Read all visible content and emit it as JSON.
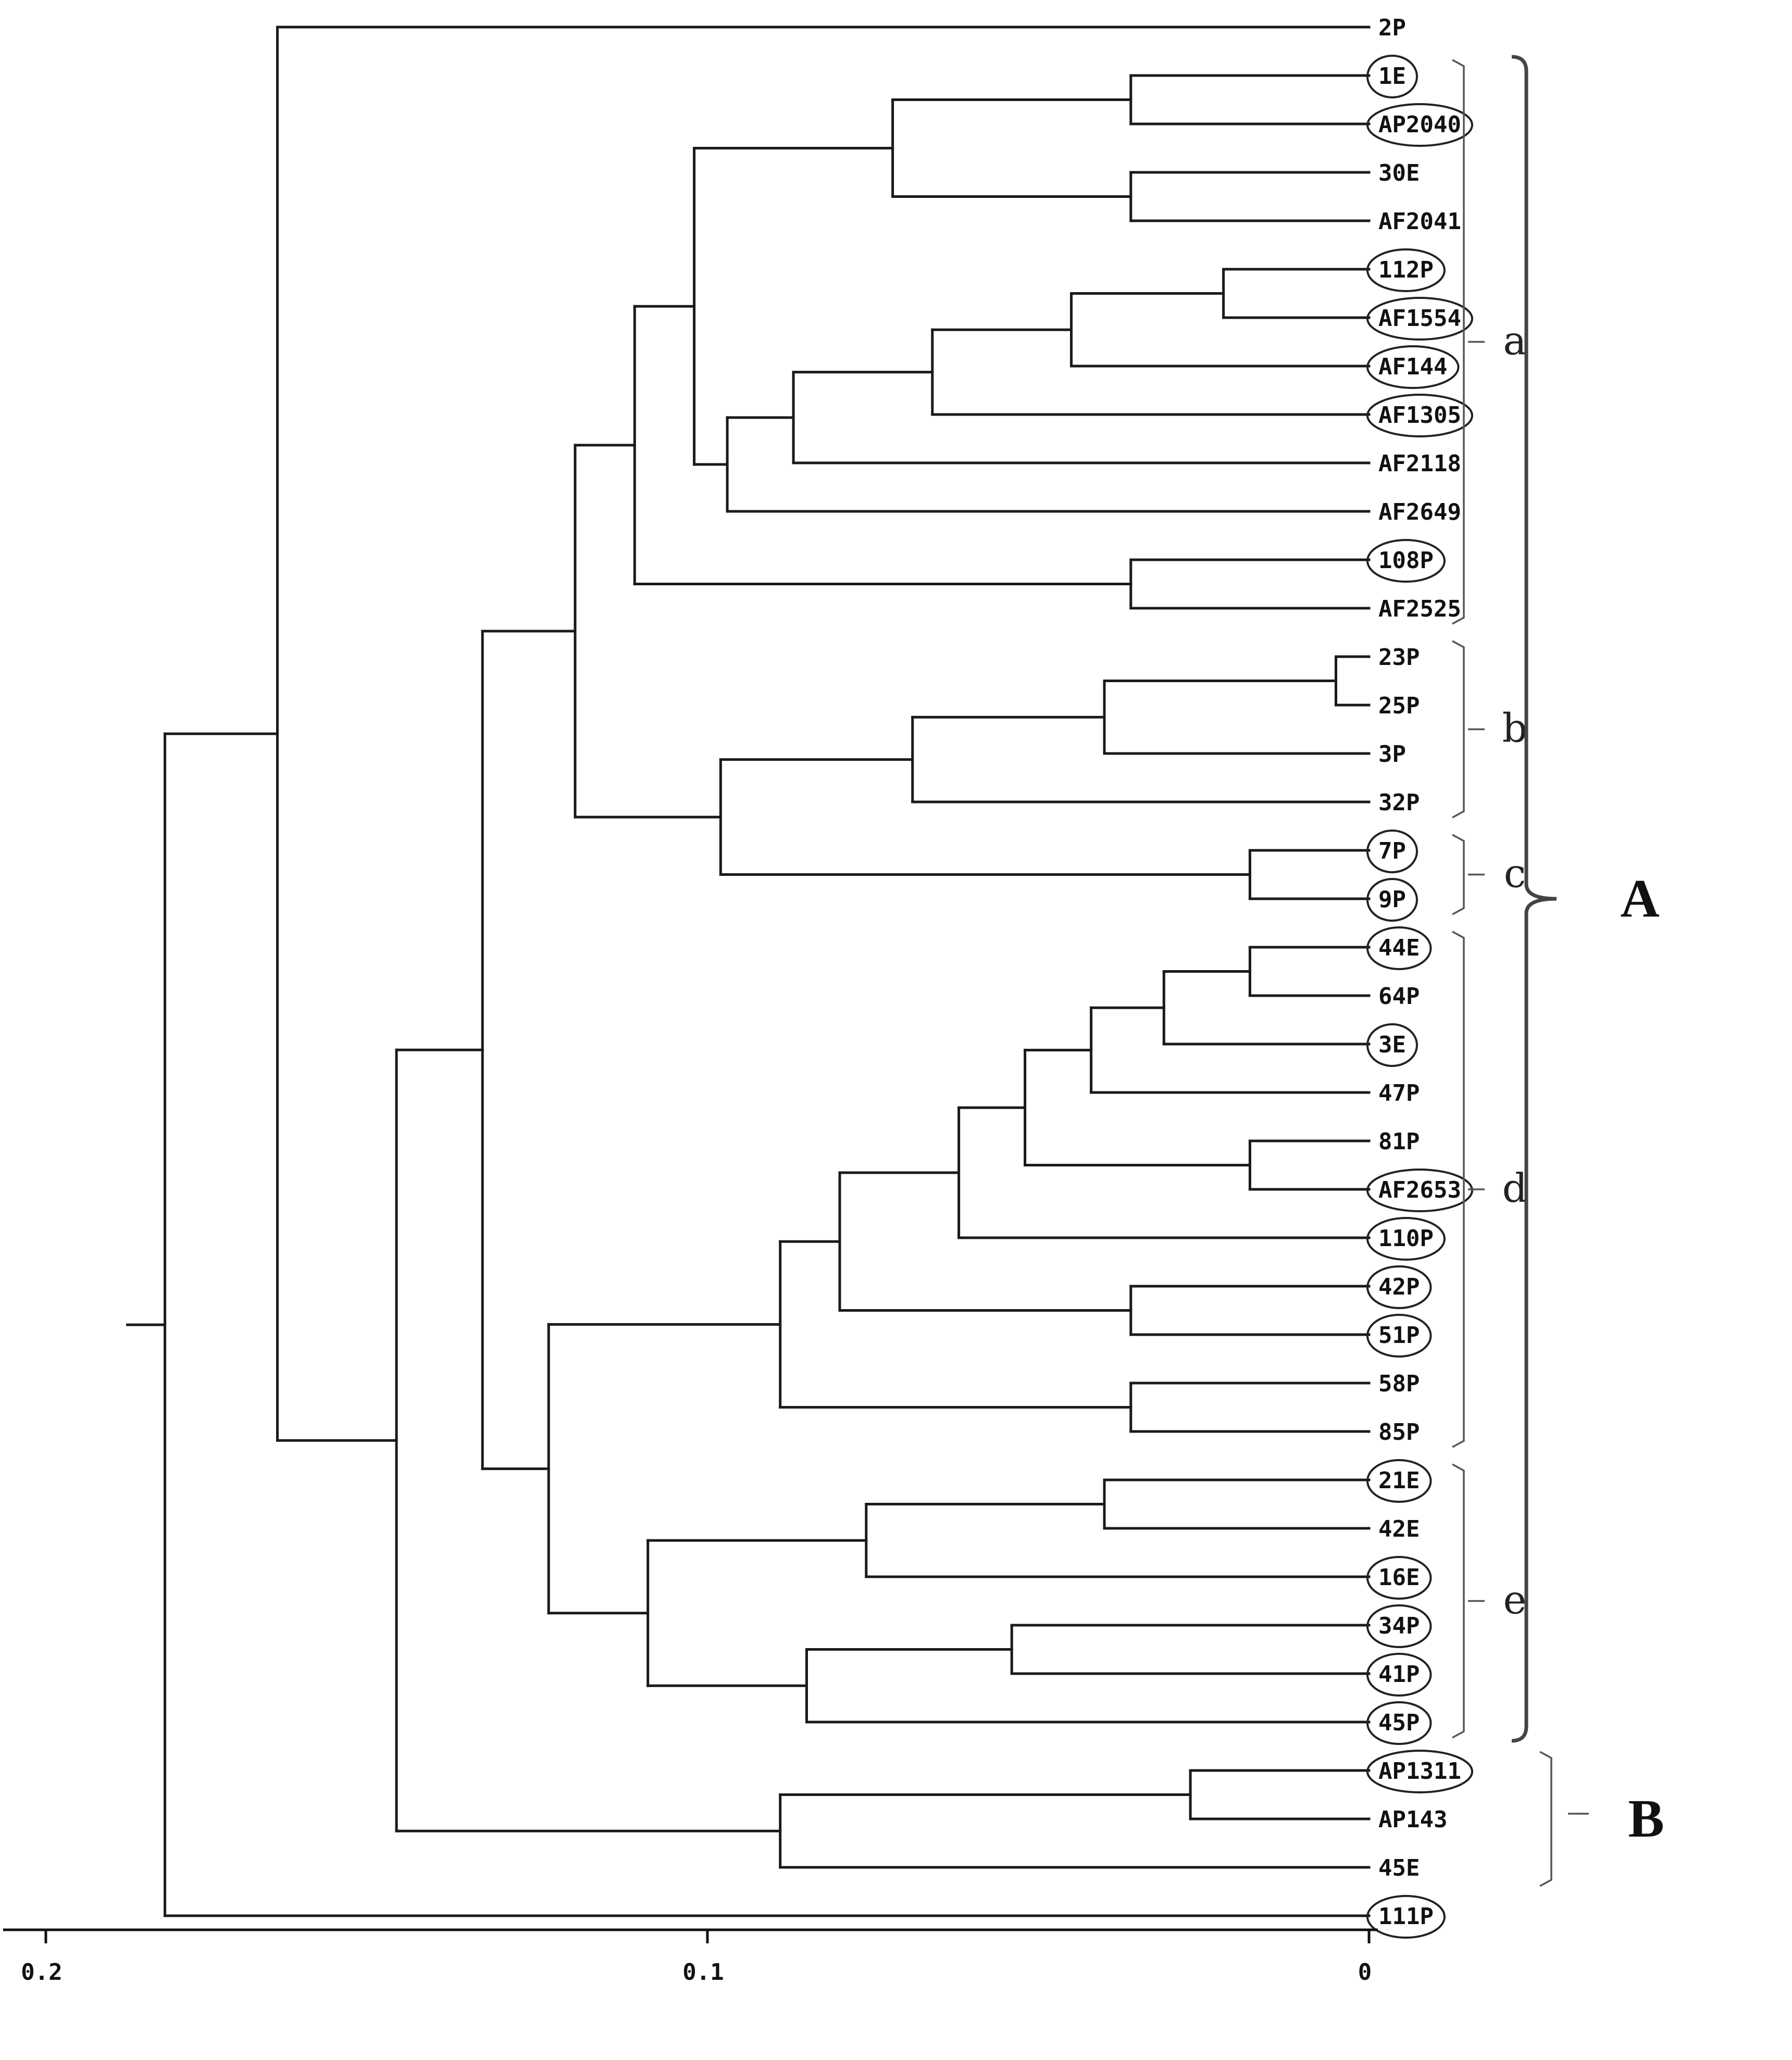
{
  "figure": {
    "type": "dendrogram",
    "axis": {
      "ticks": [
        {
          "value": 0.2,
          "label": "0.2"
        },
        {
          "value": 0.1,
          "label": "0.1"
        },
        {
          "value": 0,
          "label": "0"
        }
      ]
    },
    "leaves": [
      {
        "label": "2P",
        "circled": false
      },
      {
        "label": "1E",
        "circled": true
      },
      {
        "label": "AP2040",
        "circled": true
      },
      {
        "label": "30E",
        "circled": false
      },
      {
        "label": "AF2041",
        "circled": false
      },
      {
        "label": "112P",
        "circled": true
      },
      {
        "label": "AF1554",
        "circled": true
      },
      {
        "label": "AF144",
        "circled": true
      },
      {
        "label": "AF1305",
        "circled": true
      },
      {
        "label": "AF2118",
        "circled": false
      },
      {
        "label": "AF2649",
        "circled": false
      },
      {
        "label": "108P",
        "circled": true
      },
      {
        "label": "AF2525",
        "circled": false
      },
      {
        "label": "23P",
        "circled": false
      },
      {
        "label": "25P",
        "circled": false
      },
      {
        "label": "3P",
        "circled": false
      },
      {
        "label": "32P",
        "circled": false
      },
      {
        "label": "7P",
        "circled": true
      },
      {
        "label": "9P",
        "circled": true
      },
      {
        "label": "44E",
        "circled": true
      },
      {
        "label": "64P",
        "circled": false
      },
      {
        "label": "3E",
        "circled": true
      },
      {
        "label": "47P",
        "circled": false
      },
      {
        "label": "81P",
        "circled": false
      },
      {
        "label": "AF2653",
        "circled": true
      },
      {
        "label": "110P",
        "circled": true
      },
      {
        "label": "42P",
        "circled": true
      },
      {
        "label": "51P",
        "circled": true
      },
      {
        "label": "58P",
        "circled": false
      },
      {
        "label": "85P",
        "circled": false
      },
      {
        "label": "21E",
        "circled": true
      },
      {
        "label": "42E",
        "circled": false
      },
      {
        "label": "16E",
        "circled": true
      },
      {
        "label": "34P",
        "circled": true
      },
      {
        "label": "41P",
        "circled": true
      },
      {
        "label": "45P",
        "circled": true
      },
      {
        "label": "AP1311",
        "circled": true
      },
      {
        "label": "AP143",
        "circled": false
      },
      {
        "label": "45E",
        "circled": false
      },
      {
        "label": "111P",
        "circled": true
      }
    ],
    "internal_nodes": [
      {
        "id": "n_1E_AP2040",
        "height": 0.036,
        "children": [
          1,
          2
        ]
      },
      {
        "id": "n_30E_AF2041",
        "height": 0.036,
        "children": [
          3,
          4
        ]
      },
      {
        "id": "n_a1",
        "height": 0.072,
        "children": [
          "n_1E_AP2040",
          "n_30E_AF2041"
        ]
      },
      {
        "id": "n_112P_AF1554",
        "height": 0.022,
        "children": [
          5,
          6
        ]
      },
      {
        "id": "n_a2",
        "height": 0.045,
        "children": [
          "n_112P_AF1554",
          7
        ]
      },
      {
        "id": "n_a3",
        "height": 0.066,
        "children": [
          "n_a2",
          8
        ]
      },
      {
        "id": "n_a4",
        "height": 0.087,
        "children": [
          "n_a3",
          9
        ]
      },
      {
        "id": "n_a5",
        "height": 0.097,
        "children": [
          "n_a4",
          10
        ]
      },
      {
        "id": "n_a6",
        "height": 0.102,
        "children": [
          "n_a1",
          "n_a5"
        ]
      },
      {
        "id": "n_108P_AF2525",
        "height": 0.036,
        "children": [
          11,
          12
        ]
      },
      {
        "id": "n_a",
        "height": 0.111,
        "children": [
          "n_a6",
          "n_108P_AF2525"
        ]
      },
      {
        "id": "n_23P_25P",
        "height": 0.005,
        "children": [
          13,
          14
        ]
      },
      {
        "id": "n_b1",
        "height": 0.04,
        "children": [
          "n_23P_25P",
          15
        ]
      },
      {
        "id": "n_b",
        "height": 0.069,
        "children": [
          "n_b1",
          16
        ]
      },
      {
        "id": "n_c",
        "height": 0.018,
        "children": [
          17,
          18
        ]
      },
      {
        "id": "n_bc",
        "height": 0.098,
        "children": [
          "n_b",
          "n_c"
        ]
      },
      {
        "id": "n_abc",
        "height": 0.12,
        "children": [
          "n_a",
          "n_bc"
        ]
      },
      {
        "id": "n_44E_64P",
        "height": 0.018,
        "children": [
          19,
          20
        ]
      },
      {
        "id": "n_d1",
        "height": 0.031,
        "children": [
          "n_44E_64P",
          21
        ]
      },
      {
        "id": "n_d2",
        "height": 0.042,
        "children": [
          "n_d1",
          22
        ]
      },
      {
        "id": "n_81P_AF2653",
        "height": 0.018,
        "children": [
          23,
          24
        ]
      },
      {
        "id": "n_d3",
        "height": 0.052,
        "children": [
          "n_d2",
          "n_81P_AF2653"
        ]
      },
      {
        "id": "n_d4",
        "height": 0.062,
        "children": [
          "n_d3",
          25
        ]
      },
      {
        "id": "n_42P_51P",
        "height": 0.036,
        "children": [
          26,
          27
        ]
      },
      {
        "id": "n_d5",
        "height": 0.08,
        "children": [
          "n_d4",
          "n_42P_51P"
        ]
      },
      {
        "id": "n_58P_85P",
        "height": 0.036,
        "children": [
          28,
          29
        ]
      },
      {
        "id": "n_d",
        "height": 0.089,
        "children": [
          "n_d5",
          "n_58P_85P"
        ]
      },
      {
        "id": "n_21E_42E",
        "height": 0.04,
        "children": [
          30,
          31
        ]
      },
      {
        "id": "n_e1",
        "height": 0.076,
        "children": [
          "n_21E_42E",
          32
        ]
      },
      {
        "id": "n_34P_41P",
        "height": 0.054,
        "children": [
          33,
          34
        ]
      },
      {
        "id": "n_e2",
        "height": 0.085,
        "children": [
          "n_34P_41P",
          35
        ]
      },
      {
        "id": "n_e",
        "height": 0.109,
        "children": [
          "n_e1",
          "n_e2"
        ]
      },
      {
        "id": "n_de",
        "height": 0.124,
        "children": [
          "n_d",
          "n_e"
        ]
      },
      {
        "id": "n_A",
        "height": 0.134,
        "children": [
          "n_abc",
          "n_de"
        ]
      },
      {
        "id": "n_AP1311_AP143",
        "height": 0.027,
        "children": [
          36,
          37
        ]
      },
      {
        "id": "n_B",
        "height": 0.089,
        "children": [
          "n_AP1311_AP143",
          38
        ]
      },
      {
        "id": "n_AB",
        "height": 0.147,
        "children": [
          "n_A",
          "n_B"
        ]
      },
      {
        "id": "n_AB_2P",
        "height": 0.165,
        "children": [
          0,
          "n_AB"
        ]
      },
      {
        "id": "root",
        "height": 0.182,
        "children": [
          "n_AB_2P",
          39
        ]
      }
    ],
    "subgroups": [
      {
        "label": "a",
        "from": 1,
        "to": 12
      },
      {
        "label": "b",
        "from": 13,
        "to": 16
      },
      {
        "label": "c",
        "from": 17,
        "to": 18
      },
      {
        "label": "d",
        "from": 19,
        "to": 29
      },
      {
        "label": "e",
        "from": 30,
        "to": 35
      }
    ],
    "groups": [
      {
        "label": "A",
        "from": 1,
        "to": 35
      },
      {
        "label": "B",
        "from": 36,
        "to": 38
      }
    ]
  }
}
